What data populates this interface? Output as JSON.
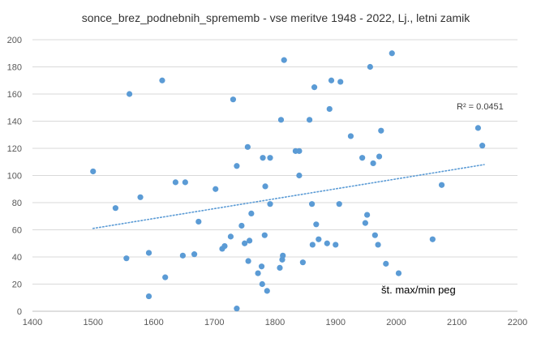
{
  "chart_data": {
    "type": "scatter",
    "title": "sonce_brez_podnebnih_sprememb - vse meritve 1948 - 2022,  Lj., letni zamik",
    "xlabel": "št. max/min peg",
    "ylabel": "",
    "xlim": [
      1400,
      2200
    ],
    "ylim": [
      0,
      200
    ],
    "x_ticks": [
      1400,
      1500,
      1600,
      1700,
      1800,
      1900,
      2000,
      2100,
      2200
    ],
    "y_ticks": [
      0,
      20,
      40,
      60,
      80,
      100,
      120,
      140,
      160,
      180,
      200
    ],
    "grid": "horizontal",
    "marker_color": "#5b9bd5",
    "trendline_color": "#5b9bd5",
    "r_squared_label": "R² = 0.0451",
    "trendline": {
      "x": [
        1500,
        2145
      ],
      "y": [
        61,
        108
      ]
    },
    "series": [
      {
        "points": [
          [
            1500,
            103
          ],
          [
            1537,
            76
          ],
          [
            1555,
            39
          ],
          [
            1560,
            160
          ],
          [
            1578,
            84
          ],
          [
            1592,
            43
          ],
          [
            1592,
            11
          ],
          [
            1614,
            170
          ],
          [
            1619,
            25
          ],
          [
            1636,
            95
          ],
          [
            1648,
            41
          ],
          [
            1652,
            95
          ],
          [
            1667,
            42
          ],
          [
            1674,
            66
          ],
          [
            1702,
            90
          ],
          [
            1713,
            46
          ],
          [
            1717,
            48
          ],
          [
            1727,
            55
          ],
          [
            1731,
            156
          ],
          [
            1737,
            107
          ],
          [
            1737,
            2
          ],
          [
            1745,
            63
          ],
          [
            1750,
            50
          ],
          [
            1755,
            121
          ],
          [
            1756,
            37
          ],
          [
            1758,
            52
          ],
          [
            1761,
            72
          ],
          [
            1772,
            28
          ],
          [
            1778,
            33
          ],
          [
            1779,
            20
          ],
          [
            1780,
            113
          ],
          [
            1783,
            56
          ],
          [
            1784,
            92
          ],
          [
            1787,
            15
          ],
          [
            1792,
            113
          ],
          [
            1792,
            79
          ],
          [
            1808,
            32
          ],
          [
            1810,
            141
          ],
          [
            1812,
            38
          ],
          [
            1813,
            41
          ],
          [
            1815,
            185
          ],
          [
            1834,
            118
          ],
          [
            1840,
            118
          ],
          [
            1840,
            100
          ],
          [
            1846,
            36
          ],
          [
            1857,
            141
          ],
          [
            1861,
            79
          ],
          [
            1862,
            49
          ],
          [
            1865,
            165
          ],
          [
            1868,
            64
          ],
          [
            1872,
            53
          ],
          [
            1886,
            50
          ],
          [
            1890,
            149
          ],
          [
            1893,
            170
          ],
          [
            1900,
            49
          ],
          [
            1906,
            79
          ],
          [
            1908,
            169
          ],
          [
            1925,
            129
          ],
          [
            1944,
            113
          ],
          [
            1949,
            65
          ],
          [
            1952,
            71
          ],
          [
            1957,
            180
          ],
          [
            1962,
            109
          ],
          [
            1965,
            56
          ],
          [
            1970,
            49
          ],
          [
            1972,
            114
          ],
          [
            1975,
            133
          ],
          [
            1983,
            35
          ],
          [
            1993,
            190
          ],
          [
            2004,
            28
          ],
          [
            2060,
            53
          ],
          [
            2075,
            93
          ],
          [
            2135,
            135
          ],
          [
            2142,
            122
          ]
        ]
      }
    ]
  }
}
